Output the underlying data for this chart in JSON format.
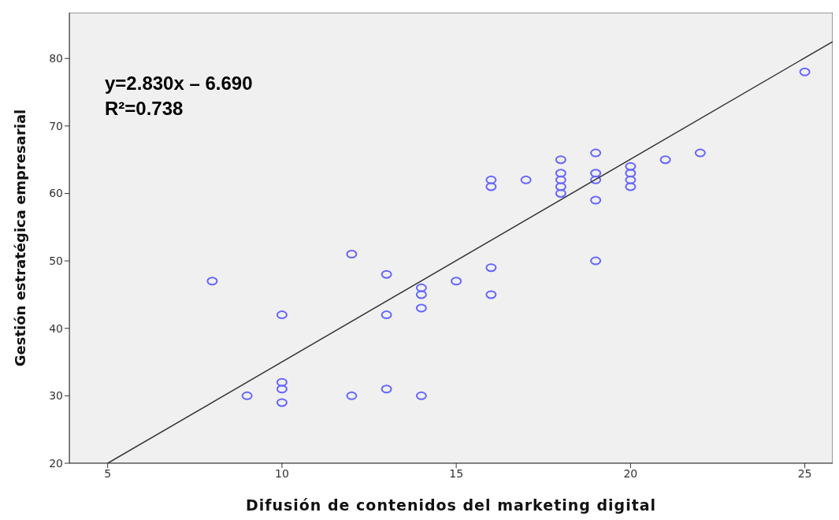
{
  "chart_data": {
    "type": "scatter",
    "xlabel": "Difusión de contenidos del marketing digital",
    "ylabel": "Gestión estratégica empresarial",
    "annotations": [
      "y=2.830x – 6.690",
      "R²=0.738"
    ],
    "xlim": [
      3.9,
      25.8
    ],
    "ylim": [
      20,
      86.8
    ],
    "xticks": [
      5,
      10,
      15,
      20,
      25
    ],
    "yticks": [
      20,
      30,
      40,
      50,
      60,
      70,
      80
    ],
    "marker": "circle",
    "series": [
      {
        "color": "#6666ff",
        "x": [
          8,
          9,
          10,
          10,
          10,
          10,
          12,
          12,
          13,
          13,
          13,
          14,
          14,
          14,
          14,
          15,
          16,
          16,
          16,
          16,
          17,
          18,
          18,
          18,
          18,
          18,
          19,
          19,
          19,
          19,
          19,
          20,
          20,
          20,
          20,
          21,
          22,
          25
        ],
        "values": [
          47,
          30,
          42,
          32,
          31,
          29,
          51,
          30,
          48,
          42,
          31,
          46,
          45,
          43,
          30,
          47,
          62,
          61,
          49,
          45,
          62,
          65,
          63,
          62,
          61,
          60,
          66,
          63,
          62,
          59,
          50,
          64,
          63,
          62,
          61,
          65,
          66,
          78
        ]
      },
      {
        "type": "line",
        "marker": "none",
        "color": "#333333",
        "x": [
          5,
          25.8
        ],
        "values": [
          20,
          82.5
        ]
      }
    ]
  }
}
